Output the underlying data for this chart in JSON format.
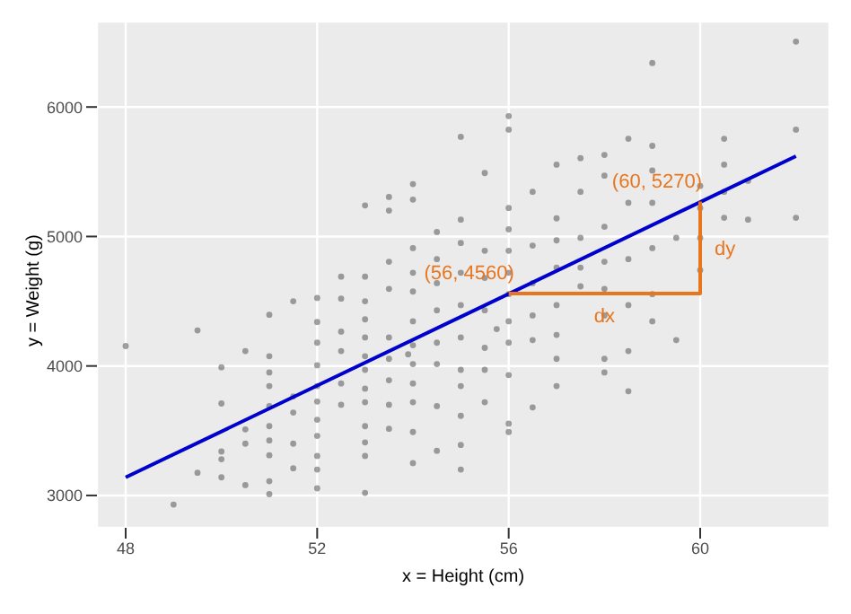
{
  "chart_data": {
    "type": "scatter",
    "xlabel": "x = Height (cm)",
    "ylabel": "y = Weight (g)",
    "xlim": [
      47.4,
      62.7
    ],
    "ylim": [
      2750,
      6660
    ],
    "xticks": [
      48,
      52,
      56,
      60
    ],
    "yticks": [
      3000,
      4000,
      5000,
      6000
    ],
    "grid": true,
    "marker": "circle",
    "legend": false,
    "series": [
      {
        "color": "#555555",
        "x": [
          48,
          49,
          49.5,
          49.5,
          50,
          50,
          50,
          50,
          50,
          50.5,
          50.5,
          50.5,
          50.5,
          51,
          51,
          51,
          51,
          51,
          51,
          51,
          51,
          51,
          51,
          51.5,
          51.5,
          51.5,
          51.5,
          51.5,
          52,
          52,
          52,
          52,
          52,
          52,
          52,
          52,
          52,
          52,
          52,
          52.5,
          52.5,
          52.5,
          52.5,
          52.5,
          52.5,
          53,
          53,
          53,
          53,
          53,
          53,
          53,
          53,
          53,
          53,
          53,
          53,
          53,
          53.5,
          53.5,
          53.5,
          53.5,
          53.5,
          53.5,
          53.5,
          53.5,
          53.5,
          53.9,
          54,
          54,
          54,
          54,
          54,
          54,
          54,
          54,
          54,
          54,
          54,
          54,
          54.5,
          54.5,
          54.5,
          54.5,
          54.5,
          54.5,
          54.5,
          54.5,
          55,
          55,
          55,
          55,
          55,
          55,
          55,
          55,
          55,
          55,
          55,
          55.5,
          55.5,
          55.5,
          55.5,
          55.5,
          55.5,
          55.5,
          55.75,
          56,
          56,
          56,
          56,
          56,
          56,
          56,
          56,
          56,
          56,
          56,
          56,
          56.5,
          56.5,
          56.5,
          56.5,
          56.5,
          56.5,
          57,
          57,
          57,
          57,
          57,
          57,
          57,
          57,
          57.5,
          57.5,
          57.5,
          57.5,
          57.5,
          58,
          58,
          58,
          58,
          58,
          58,
          58,
          58,
          58.5,
          58.5,
          58.5,
          58.5,
          58.5,
          58.5,
          59,
          59,
          59,
          59,
          59,
          59,
          59,
          59.5,
          59.5,
          60,
          60,
          60,
          60,
          60.5,
          60.5,
          60.5,
          60.5,
          61,
          61,
          62,
          62,
          62
        ],
        "values": [
          4154,
          2930,
          4275,
          3175,
          3990,
          3710,
          3340,
          3280,
          3140,
          4115,
          3510,
          3400,
          3080,
          4395,
          4075,
          3950,
          3845,
          3690,
          3535,
          3425,
          3310,
          3110,
          3010,
          4500,
          3765,
          3640,
          3400,
          3210,
          4525,
          4340,
          4180,
          4005,
          3845,
          3725,
          3585,
          3460,
          3305,
          3200,
          3055,
          4690,
          4520,
          4265,
          4115,
          3865,
          3700,
          5240,
          4690,
          4500,
          4360,
          4220,
          4075,
          3970,
          3825,
          3720,
          3535,
          3410,
          3305,
          3020,
          5305,
          5200,
          4805,
          4595,
          4220,
          4055,
          3890,
          3700,
          3515,
          4090,
          5405,
          5285,
          4910,
          4720,
          4575,
          4345,
          4160,
          4015,
          3865,
          3720,
          3490,
          3250,
          5035,
          4825,
          4640,
          4430,
          4180,
          4015,
          3690,
          3345,
          5770,
          5130,
          4950,
          4720,
          4470,
          4220,
          3970,
          3845,
          3615,
          3390,
          3200,
          5490,
          4890,
          4680,
          4430,
          4140,
          3970,
          3720,
          4285,
          5930,
          5825,
          5220,
          5055,
          4890,
          4720,
          4555,
          4345,
          4180,
          3930,
          3555,
          3490,
          5345,
          4930,
          4640,
          4390,
          4200,
          3680,
          5555,
          5140,
          4970,
          4760,
          4470,
          4240,
          4055,
          3845,
          5605,
          5345,
          4990,
          4760,
          4615,
          5630,
          5470,
          5075,
          4805,
          4595,
          4390,
          4055,
          3950,
          5755,
          5260,
          4825,
          4470,
          4115,
          3805,
          6340,
          5700,
          5510,
          5260,
          4910,
          4555,
          4345,
          4990,
          4200,
          5390,
          5220,
          4990,
          4740,
          5755,
          5555,
          5345,
          5145,
          5430,
          5130,
          6505,
          5825,
          5145
        ]
      },
      {
        "type": "line",
        "marker": "none",
        "color": "#0000cc",
        "x": [
          48,
          62
        ],
        "values": [
          3140,
          5620
        ]
      },
      {
        "type": "line",
        "marker": "none",
        "color": "#e8761e",
        "x": [
          56,
          60,
          60
        ],
        "values": [
          4560,
          4560,
          5270
        ]
      }
    ],
    "annotations": [
      {
        "text": "(56, 4560)",
        "x": 56,
        "y": 4560
      },
      {
        "text": "(60, 5270)",
        "x": 60,
        "y": 5270
      },
      {
        "text": "dx",
        "x": 58,
        "y": 4560
      },
      {
        "text": "dy",
        "x": 60,
        "y": 4915
      }
    ]
  }
}
